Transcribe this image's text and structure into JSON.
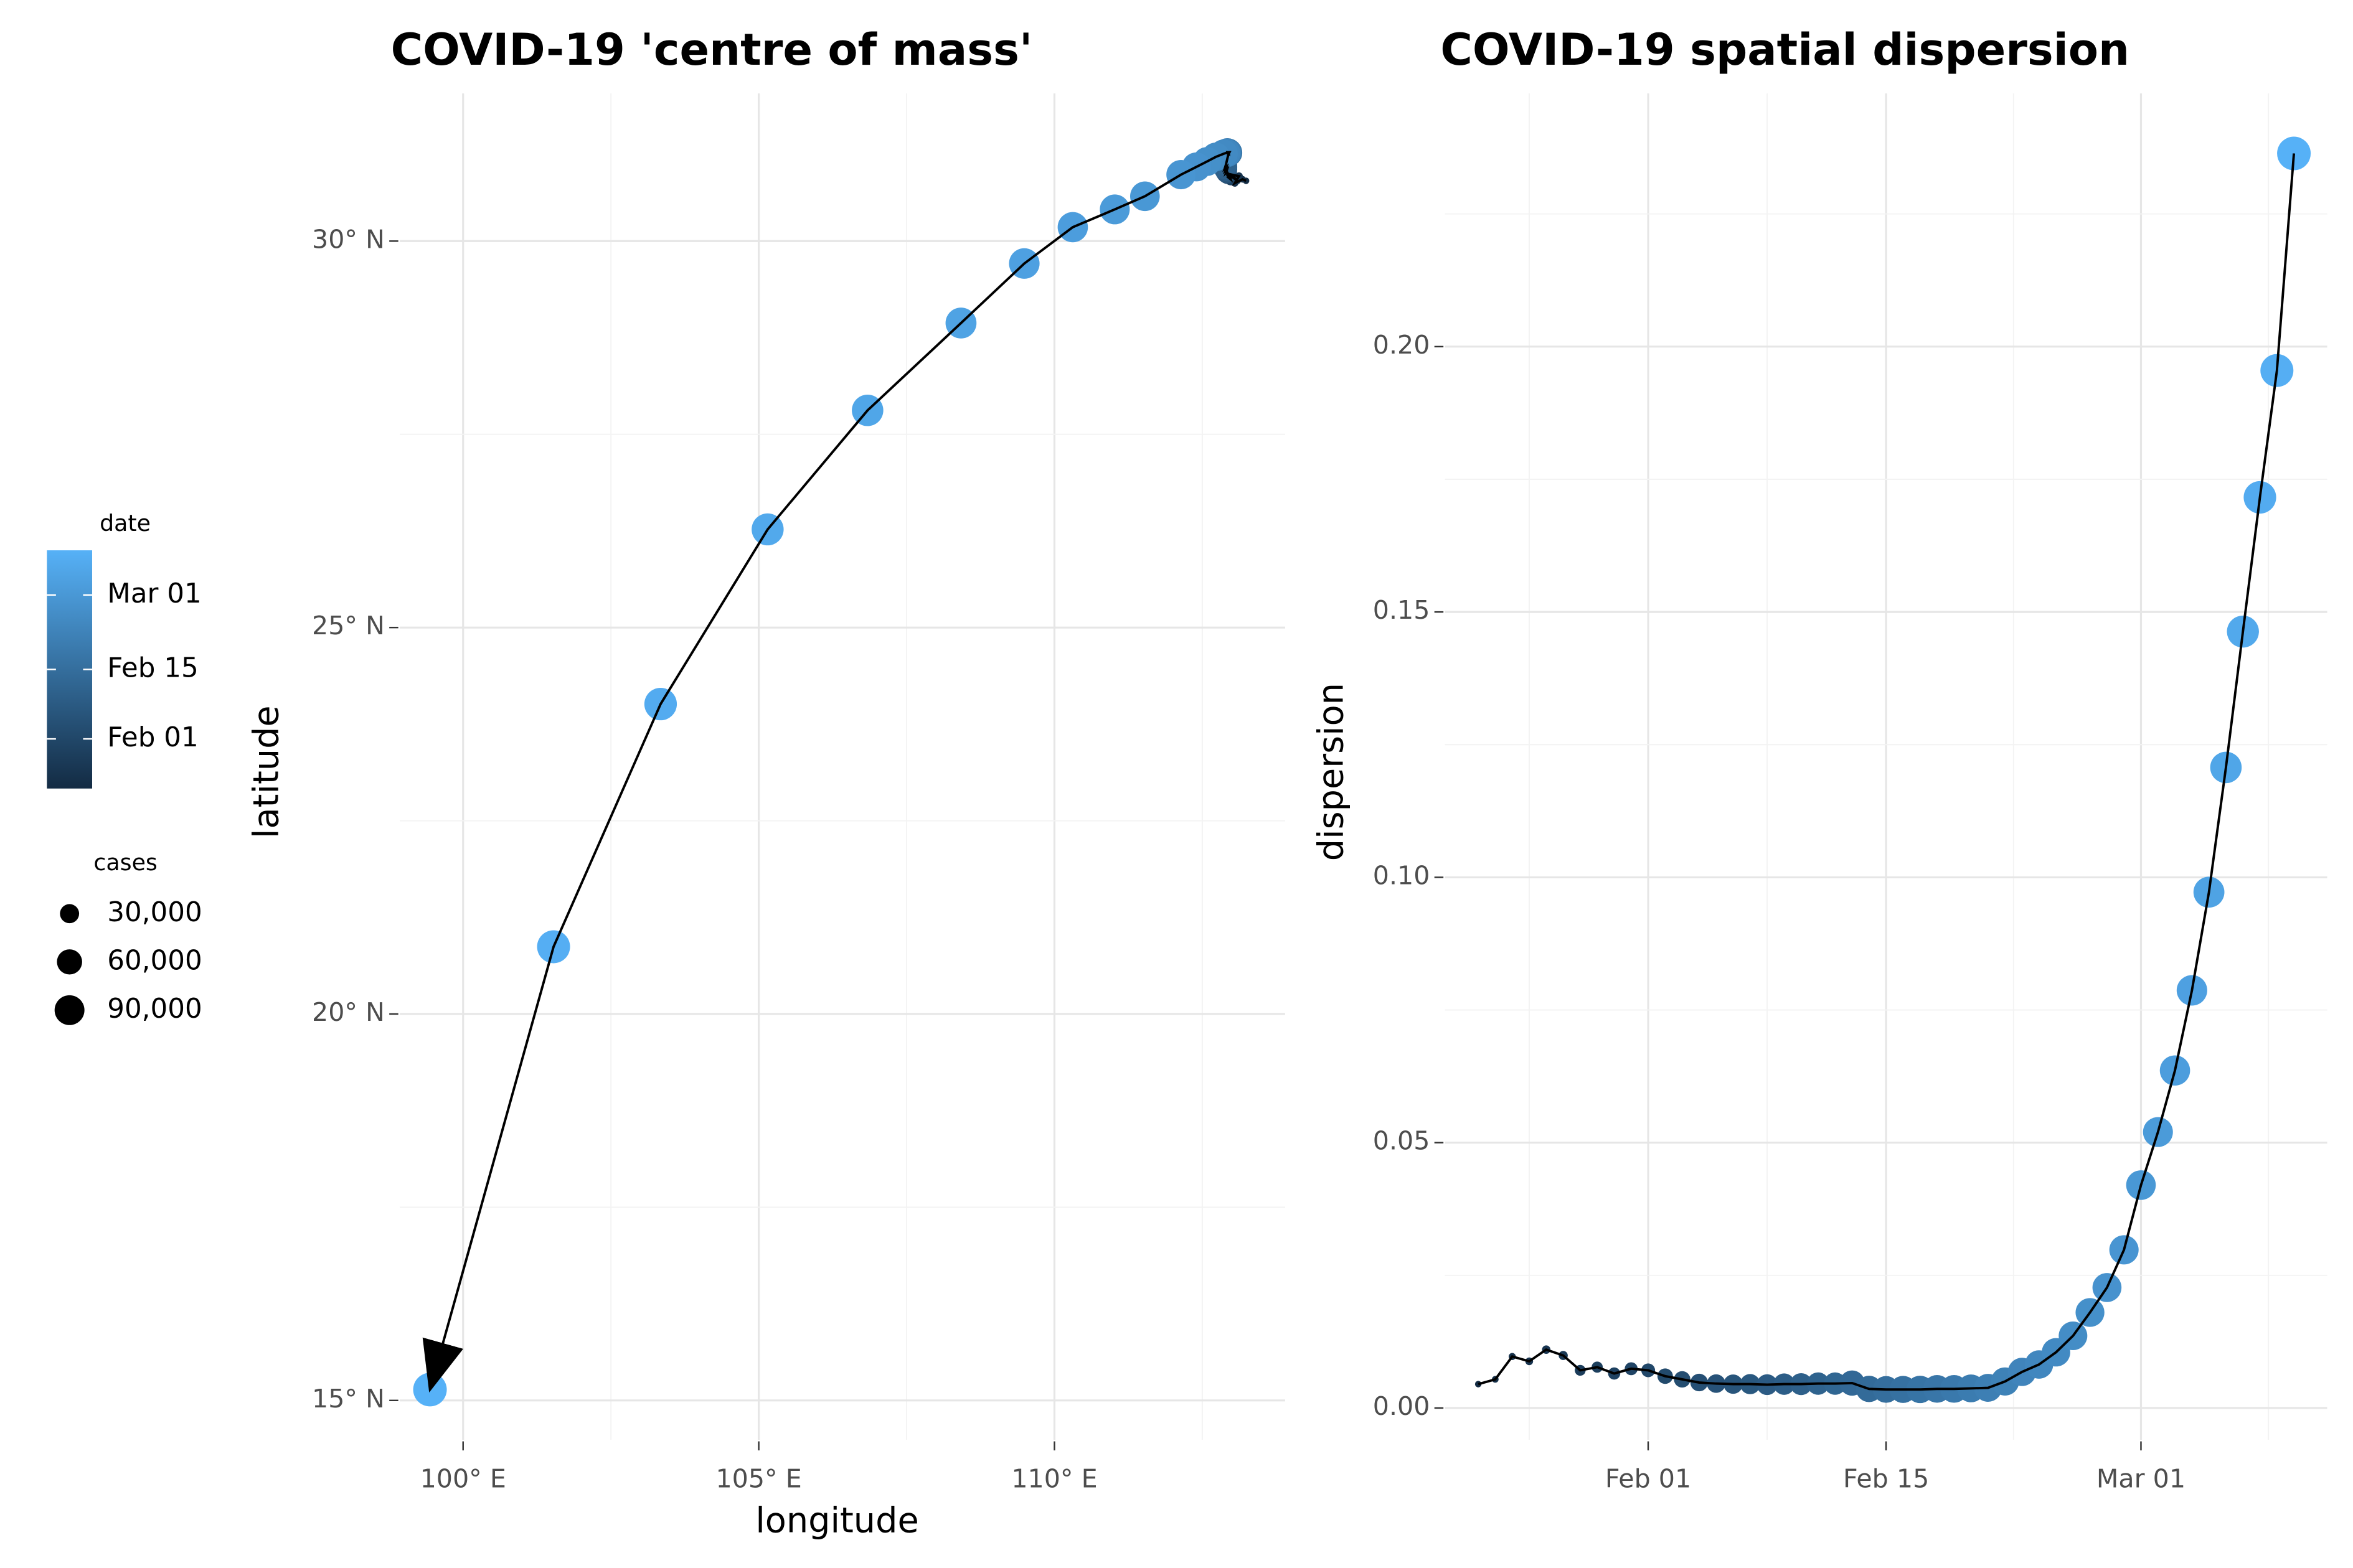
{
  "chart_data": [
    {
      "type": "scatter",
      "title": "COVID-19 'centre of mass'",
      "x_label": "longitude",
      "y_label": "latitude",
      "x": [
        113.24,
        113.18,
        113.05,
        113.12,
        113.0,
        113.08,
        113.02,
        112.96,
        112.98,
        112.93,
        112.95,
        112.92,
        112.94,
        112.91,
        112.93,
        112.9,
        112.92,
        112.89,
        112.91,
        112.88,
        112.9,
        112.94,
        112.96,
        112.95,
        112.95,
        112.94,
        112.94,
        112.93,
        112.93,
        112.93,
        112.92,
        112.92,
        112.91,
        112.9,
        112.86,
        112.73,
        112.58,
        112.4,
        112.14,
        111.53,
        111.02,
        110.31,
        109.49,
        108.42,
        106.84,
        105.15,
        103.34,
        101.53,
        99.44
      ],
      "y": [
        30.78,
        30.8,
        30.75,
        30.84,
        30.86,
        30.79,
        30.82,
        30.85,
        30.8,
        30.83,
        30.87,
        30.84,
        30.88,
        30.86,
        30.9,
        30.88,
        30.93,
        30.91,
        30.96,
        30.94,
        30.99,
        31.12,
        31.15,
        31.15,
        31.14,
        31.15,
        31.15,
        31.15,
        31.14,
        31.15,
        31.15,
        31.14,
        31.14,
        31.14,
        31.13,
        31.09,
        31.03,
        30.96,
        30.86,
        30.58,
        30.41,
        30.18,
        29.71,
        28.94,
        27.81,
        26.27,
        24.01,
        20.87,
        15.14
      ],
      "xlim": [
        98.93,
        113.9
      ],
      "ylim": [
        14.49,
        31.91
      ],
      "xticks": [
        {
          "value": 100,
          "label": "100° E"
        },
        {
          "value": 105,
          "label": "105° E"
        },
        {
          "value": 110,
          "label": "110° E"
        }
      ],
      "yticks": [
        {
          "value": 15,
          "label": "15° N"
        },
        {
          "value": 20,
          "label": "20° N"
        },
        {
          "value": 25,
          "label": "25° N"
        },
        {
          "value": 30,
          "label": "30° N"
        }
      ],
      "grid": true,
      "line_color": "#000000",
      "arrow": true
    },
    {
      "type": "line",
      "title": "COVID-19 spatial dispersion",
      "y_label": "dispersion",
      "categories": [
        null,
        null,
        null,
        null,
        null,
        null,
        null,
        null,
        null,
        null,
        "Feb 01",
        null,
        null,
        null,
        null,
        null,
        null,
        null,
        null,
        null,
        null,
        null,
        null,
        null,
        "Feb 15",
        null,
        null,
        null,
        null,
        null,
        null,
        null,
        null,
        null,
        null,
        null,
        null,
        null,
        null,
        "Mar 01",
        null,
        null,
        null,
        null,
        null,
        null,
        null,
        null,
        null
      ],
      "values": [
        0.0045,
        0.0054,
        0.0097,
        0.0088,
        0.011,
        0.0099,
        0.0071,
        0.0077,
        0.0065,
        0.0074,
        0.0071,
        0.006,
        0.0054,
        0.0048,
        0.0046,
        0.0045,
        0.0045,
        0.0044,
        0.0045,
        0.0045,
        0.0046,
        0.0046,
        0.0047,
        0.0036,
        0.0035,
        0.0035,
        0.0035,
        0.0036,
        0.0036,
        0.0037,
        0.0038,
        0.005,
        0.0068,
        0.0082,
        0.0105,
        0.0136,
        0.018,
        0.0227,
        0.0298,
        0.042,
        0.052,
        0.0636,
        0.0787,
        0.0972,
        0.1207,
        0.1463,
        0.1716,
        0.1955,
        0.2364
      ],
      "cases": [
        555,
        654,
        941,
        1434,
        2118,
        2927,
        5578,
        6166,
        8234,
        9927,
        12038,
        16787,
        19881,
        23892,
        27635,
        30794,
        34391,
        37120,
        40150,
        42762,
        44802,
        45221,
        60368,
        66885,
        69030,
        71224,
        73258,
        75136,
        75639,
        76197,
        76819,
        78572,
        78958,
        79561,
        80406,
        81388,
        82746,
        84112,
        86011,
        88369,
        90306,
        92840,
        95120,
        97886,
        101801,
        105847,
        109821,
        113590,
        118620
      ],
      "ylim": [
        -0.006,
        0.2477
      ],
      "yticks": [
        {
          "value": 0,
          "label": "0.00"
        },
        {
          "value": 0.05,
          "label": "0.05"
        },
        {
          "value": 0.1,
          "label": "0.10"
        },
        {
          "value": 0.15,
          "label": "0.15"
        },
        {
          "value": 0.2,
          "label": "0.20"
        }
      ],
      "grid": true,
      "line_color": "#000000"
    }
  ],
  "legend": {
    "color_title": "date",
    "color_low": "#132B43",
    "color_high": "#56B1F7",
    "color_ticks": [
      "Mar 01",
      "Feb 15",
      "Feb 01"
    ],
    "size_title": "cases",
    "size_ticks": [
      {
        "value": 30000,
        "label": "30,000"
      },
      {
        "value": 60000,
        "label": "60,000"
      },
      {
        "value": 90000,
        "label": "90,000"
      }
    ],
    "size_color": "#000000"
  }
}
